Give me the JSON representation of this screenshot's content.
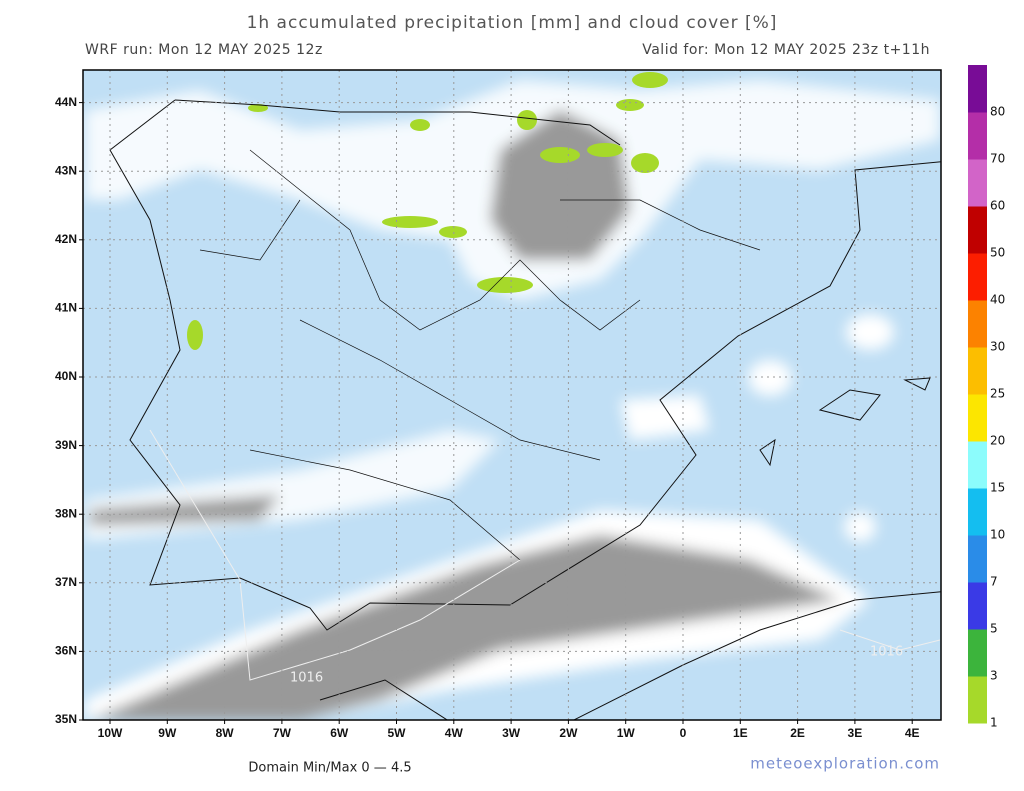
{
  "header": {
    "title": "1h accumulated precipitation [mm] and cloud cover [%]",
    "run": "WRF run: Mon 12 MAY 2025 12z",
    "valid": "Valid for: Mon 12 MAY 2025 23z  t+11h"
  },
  "map": {
    "lat_labels": [
      "35N",
      "36N",
      "37N",
      "38N",
      "39N",
      "40N",
      "41N",
      "42N",
      "43N",
      "44N"
    ],
    "lon_labels": [
      "10W",
      "9W",
      "8W",
      "7W",
      "6W",
      "5W",
      "4W",
      "3W",
      "2W",
      "1W",
      "0",
      "1E",
      "2E",
      "3E",
      "4E"
    ],
    "isobar_labels": [
      "1016",
      "1016"
    ]
  },
  "legend": {
    "levels": [
      "1",
      "3",
      "5",
      "7",
      "10",
      "15",
      "20",
      "25",
      "30",
      "40",
      "50",
      "60",
      "70",
      "80"
    ],
    "colors": [
      "#a6d92a",
      "#3cb43c",
      "#3a3ae6",
      "#2a8ce8",
      "#14bef0",
      "#8cfcfc",
      "#fce600",
      "#fcbe00",
      "#fc8200",
      "#fc1e00",
      "#c00000",
      "#d264c8",
      "#b42ea8",
      "#780c96"
    ]
  },
  "footer": {
    "domain": "Domain Min/Max 0 — 4.5",
    "site": "meteoexploration.com"
  }
}
